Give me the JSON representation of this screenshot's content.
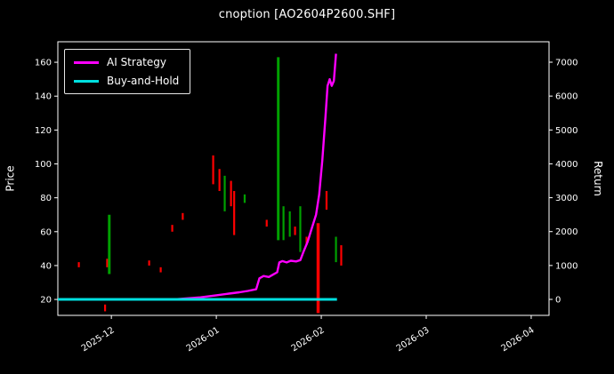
{
  "chart_data": {
    "type": "line",
    "title": "cnoption [AO2604P2600.SHF]",
    "xlabel": "",
    "grid": false,
    "colors": {
      "background": "#000000",
      "text": "#ffffff",
      "frame": "#ffffff",
      "up_candle": "#00a000",
      "down_candle": "#ff0000",
      "ai_strategy": "#ff00ff",
      "buy_and_hold": "#00e0e0"
    },
    "left_axis": {
      "label": "Price",
      "ticks": [
        20,
        40,
        60,
        80,
        100,
        120,
        140,
        160
      ],
      "range": [
        10.6,
        172.1
      ]
    },
    "right_axis": {
      "label": "Return",
      "ticks": [
        0,
        1000,
        2000,
        3000,
        4000,
        5000,
        6000,
        7000
      ],
      "range": [
        -472,
        7603
      ]
    },
    "x_axis": {
      "tick_labels": [
        "2025-12",
        "2026-01",
        "2026-02",
        "2026-03",
        "2026-04"
      ],
      "tick_positions": [
        0,
        1,
        2,
        3,
        4
      ],
      "range": [
        -0.51,
        4.17
      ]
    },
    "legend": {
      "position": "upper-left",
      "entries": [
        {
          "label": "AI Strategy",
          "color": "#ff00ff"
        },
        {
          "label": "Buy-and-Hold",
          "color": "#00e0e0"
        }
      ]
    },
    "candles": [
      {
        "x": -0.31,
        "low": 39,
        "high": 42,
        "color": "red"
      },
      {
        "x": -0.06,
        "low": 13,
        "high": 17,
        "color": "red"
      },
      {
        "x": -0.04,
        "low": 39,
        "high": 44,
        "color": "red"
      },
      {
        "x": -0.02,
        "low": 35,
        "high": 70,
        "color": "green",
        "w": 3
      },
      {
        "x": 0.36,
        "low": 40,
        "high": 43,
        "color": "red"
      },
      {
        "x": 0.47,
        "low": 36,
        "high": 39,
        "color": "red"
      },
      {
        "x": 0.58,
        "low": 60,
        "high": 64,
        "color": "red"
      },
      {
        "x": 0.68,
        "low": 67,
        "high": 71,
        "color": "red"
      },
      {
        "x": 0.97,
        "low": 88,
        "high": 105,
        "color": "red"
      },
      {
        "x": 1.03,
        "low": 84,
        "high": 97,
        "color": "red"
      },
      {
        "x": 1.08,
        "low": 72,
        "high": 93,
        "color": "green"
      },
      {
        "x": 1.14,
        "low": 75,
        "high": 90,
        "color": "red"
      },
      {
        "x": 1.17,
        "low": 58,
        "high": 84,
        "color": "red"
      },
      {
        "x": 1.27,
        "low": 77,
        "high": 82,
        "color": "green"
      },
      {
        "x": 1.48,
        "low": 63,
        "high": 67,
        "color": "red"
      },
      {
        "x": 1.59,
        "low": 55,
        "high": 163,
        "color": "green",
        "w": 3
      },
      {
        "x": 1.64,
        "low": 55,
        "high": 75,
        "color": "green"
      },
      {
        "x": 1.7,
        "low": 57,
        "high": 72,
        "color": "green"
      },
      {
        "x": 1.75,
        "low": 58,
        "high": 63,
        "color": "red"
      },
      {
        "x": 1.8,
        "low": 48,
        "high": 75,
        "color": "green"
      },
      {
        "x": 1.86,
        "low": 52,
        "high": 57,
        "color": "red"
      },
      {
        "x": 1.97,
        "low": 12,
        "high": 65,
        "color": "red",
        "w": 3.5
      },
      {
        "x": 2.05,
        "low": 73,
        "high": 84,
        "color": "red"
      },
      {
        "x": 2.14,
        "low": 42,
        "high": 57,
        "color": "green"
      },
      {
        "x": 2.19,
        "low": 40,
        "high": 52,
        "color": "red"
      }
    ],
    "series": [
      {
        "name": "AI Strategy",
        "axis": "right",
        "color": "#ff00ff",
        "width": 2.4,
        "points": [
          [
            -0.51,
            0
          ],
          [
            0.6,
            0
          ],
          [
            0.85,
            60
          ],
          [
            1.0,
            120
          ],
          [
            1.12,
            170
          ],
          [
            1.22,
            210
          ],
          [
            1.3,
            250
          ],
          [
            1.38,
            300
          ],
          [
            1.41,
            620
          ],
          [
            1.45,
            690
          ],
          [
            1.5,
            660
          ],
          [
            1.55,
            750
          ],
          [
            1.58,
            800
          ],
          [
            1.6,
            1090
          ],
          [
            1.63,
            1130
          ],
          [
            1.67,
            1090
          ],
          [
            1.71,
            1140
          ],
          [
            1.76,
            1120
          ],
          [
            1.8,
            1160
          ],
          [
            1.83,
            1400
          ],
          [
            1.87,
            1700
          ],
          [
            1.91,
            2100
          ],
          [
            1.95,
            2500
          ],
          [
            1.98,
            3100
          ],
          [
            2.01,
            4100
          ],
          [
            2.04,
            5400
          ],
          [
            2.06,
            6300
          ],
          [
            2.08,
            6500
          ],
          [
            2.1,
            6300
          ],
          [
            2.12,
            6450
          ],
          [
            2.14,
            7250
          ]
        ]
      },
      {
        "name": "Buy-and-Hold",
        "axis": "right",
        "color": "#00e0e0",
        "width": 3,
        "points": [
          [
            -0.51,
            0
          ],
          [
            2.15,
            0
          ]
        ]
      }
    ]
  }
}
